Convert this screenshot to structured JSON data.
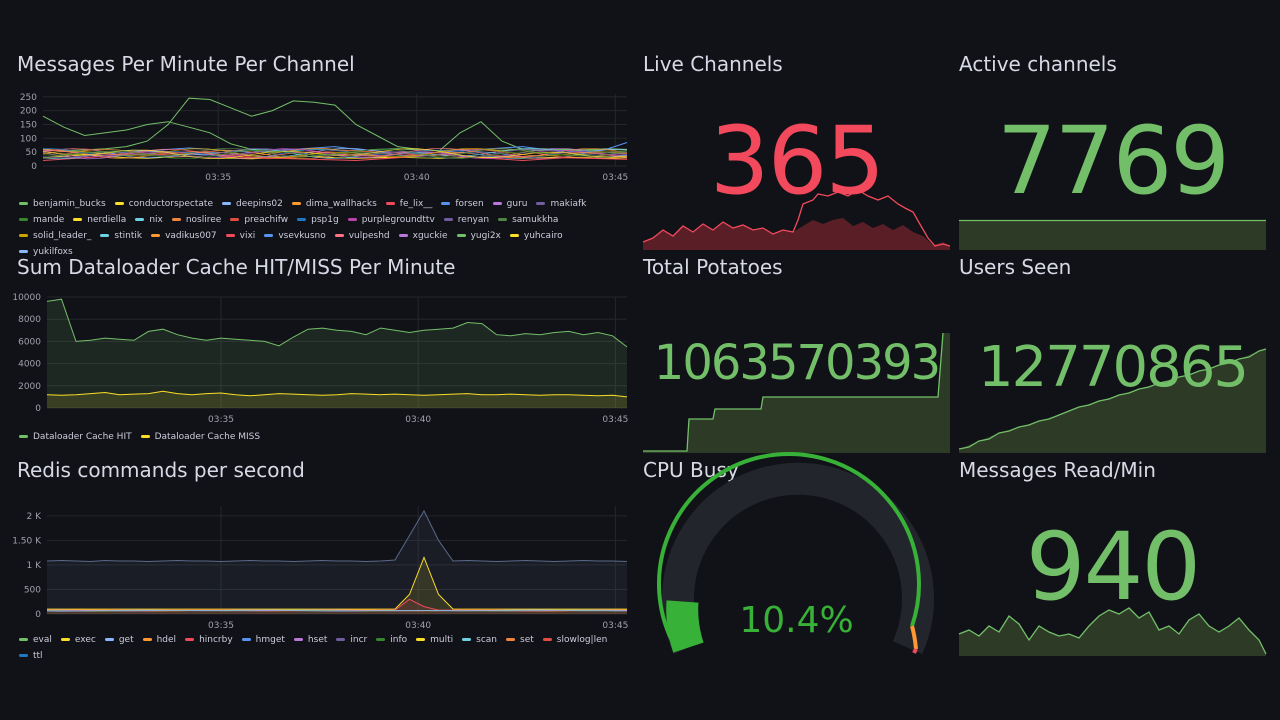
{
  "colors": {
    "background": "#111217",
    "green": "#73bf69",
    "red": "#f2495c",
    "yellow": "#fade2a",
    "grid": "#24262c"
  },
  "panels": {
    "messages": {
      "title": "Messages Per Minute Per Channel",
      "legend": [
        "benjamin_bucks",
        "conductorspectate",
        "deepins02",
        "dima_wallhacks",
        "fe_lix__",
        "forsen",
        "guru",
        "makiafk",
        "mande",
        "nerdiella",
        "nix",
        "nosliree",
        "preachifw",
        "psp1g",
        "purplegroundttv",
        "renyan",
        "samukkha",
        "solid_leader_",
        "stintik",
        "vadikus007",
        "vixi",
        "vsevkusno",
        "vulpeshd",
        "xguckie",
        "yugi2x",
        "yuhcairo",
        "yukilfoxs"
      ],
      "legend_colors": [
        "#73bf69",
        "#fade2a",
        "#8ab8ff",
        "#ff9830",
        "#f2495c",
        "#5794f2",
        "#b877d9",
        "#705da0",
        "#37872d",
        "#fade2a",
        "#6ed0e0",
        "#ef843c",
        "#e24d42",
        "#1f78c1",
        "#ba43a9",
        "#705da0",
        "#508642",
        "#cca300",
        "#6ed0e0",
        "#ff9830",
        "#f2495c",
        "#5794f2",
        "#ff7383",
        "#b877d9",
        "#73bf69",
        "#fade2a",
        "#8ab8ff"
      ]
    },
    "cache": {
      "title": "Sum Dataloader Cache HIT/MISS Per Minute",
      "legend": [
        "Dataloader Cache HIT",
        "Dataloader Cache MISS"
      ],
      "legend_colors": [
        "#73bf69",
        "#fade2a"
      ]
    },
    "redis": {
      "title": "Redis commands per second",
      "legend": [
        "eval",
        "exec",
        "get",
        "hdel",
        "hincrby",
        "hmget",
        "hset",
        "incr",
        "info",
        "multi",
        "scan",
        "set",
        "slowlog|len",
        "ttl"
      ],
      "legend_colors": [
        "#73bf69",
        "#fade2a",
        "#8ab8ff",
        "#ff9830",
        "#f2495c",
        "#5794f2",
        "#b877d9",
        "#705da0",
        "#37872d",
        "#fade2a",
        "#6ed0e0",
        "#ef843c",
        "#e24d42",
        "#1f78c1"
      ]
    },
    "live_channels": {
      "title": "Live Channels",
      "value": "365"
    },
    "active_channels": {
      "title": "Active channels",
      "value": "7769"
    },
    "total_potatoes": {
      "title": "Total Potatoes",
      "value": "1063570393"
    },
    "users_seen": {
      "title": "Users Seen",
      "value": "12770865"
    },
    "cpu_busy": {
      "title": "CPU Busy",
      "value": "10.4%",
      "percent": 10.4
    },
    "messages_read": {
      "title": "Messages Read/Min",
      "value": "940"
    }
  },
  "chart_data": [
    {
      "type": "line",
      "title": "Messages Per Minute Per Channel",
      "x_ticks": [
        "03:35",
        "03:40",
        "03:45"
      ],
      "y_ticks": [
        "0",
        "50",
        "100",
        "150",
        "200",
        "250"
      ],
      "ylim": [
        0,
        260
      ],
      "series": [
        {
          "name": "mande",
          "values": [
            60,
            55,
            58,
            62,
            70,
            90,
            150,
            245,
            240,
            210,
            180,
            200,
            235,
            230,
            220,
            150,
            110,
            70,
            60,
            55,
            120,
            160,
            90,
            60,
            55,
            60,
            58,
            62,
            60
          ]
        },
        {
          "name": "benjamin_bucks",
          "values": [
            180,
            140,
            110,
            120,
            130,
            150,
            160,
            140,
            120,
            80,
            60,
            50,
            55,
            60,
            58,
            55,
            60,
            62,
            58,
            55,
            60,
            58,
            55,
            60,
            62,
            58,
            55,
            60,
            58
          ]
        },
        {
          "name": "forsen",
          "values": [
            60,
            55,
            50,
            45,
            50,
            55,
            60,
            65,
            60,
            55,
            50,
            55,
            60,
            65,
            70,
            60,
            55,
            50,
            45,
            50,
            55,
            60,
            65,
            70,
            60,
            55,
            50,
            60,
            85
          ]
        },
        {
          "name": "conductorspectate",
          "values": [
            30,
            35,
            40,
            35,
            30,
            28,
            32,
            35,
            30,
            28,
            26,
            30,
            32,
            35,
            30,
            28,
            30,
            32,
            30,
            28,
            30,
            32,
            30,
            28,
            30,
            32,
            30,
            28,
            30
          ]
        },
        {
          "name": "fe_lix__",
          "values": [
            20,
            25,
            30,
            35,
            40,
            45,
            50,
            45,
            40,
            35,
            30,
            28,
            26,
            24,
            22,
            20,
            25,
            30,
            35,
            40,
            35,
            30,
            25,
            20,
            25,
            30,
            28,
            26,
            24
          ]
        }
      ]
    },
    {
      "type": "line",
      "title": "Sum Dataloader Cache HIT/MISS Per Minute",
      "x_ticks": [
        "03:35",
        "03:40",
        "03:45"
      ],
      "y_ticks": [
        "0",
        "2000",
        "4000",
        "6000",
        "8000",
        "10000"
      ],
      "ylim": [
        0,
        10000
      ],
      "series": [
        {
          "name": "Dataloader Cache HIT",
          "values": [
            9600,
            9800,
            6000,
            6100,
            6300,
            6200,
            6100,
            6900,
            7100,
            6600,
            6300,
            6100,
            6300,
            6200,
            6100,
            6000,
            5600,
            6400,
            7100,
            7200,
            7000,
            6900,
            6600,
            7200,
            7000,
            6800,
            7000,
            7100,
            7200,
            7700,
            7600,
            6600,
            6500,
            6700,
            6600,
            6800,
            6900,
            6600,
            6800,
            6500,
            5500
          ]
        },
        {
          "name": "Dataloader Cache MISS",
          "values": [
            1200,
            1150,
            1200,
            1300,
            1400,
            1200,
            1250,
            1300,
            1500,
            1300,
            1200,
            1300,
            1350,
            1200,
            1100,
            1200,
            1300,
            1250,
            1200,
            1150,
            1200,
            1300,
            1250,
            1200,
            1250,
            1200,
            1150,
            1200,
            1250,
            1300,
            1200,
            1200,
            1250,
            1200,
            1150,
            1200,
            1200,
            1150,
            1100,
            1150,
            1000
          ]
        }
      ]
    },
    {
      "type": "area",
      "title": "Redis commands per second",
      "x_ticks": [
        "03:35",
        "03:40",
        "03:45"
      ],
      "y_ticks": [
        "0",
        "500",
        "1 K",
        "1.50 K",
        "2 K"
      ],
      "ylim": [
        0,
        2200
      ],
      "series": [
        {
          "name": "scan",
          "values": [
            1080,
            1090,
            1080,
            1070,
            1090,
            1080,
            1080,
            1070,
            1080,
            1090,
            1080,
            1080,
            1070,
            1080,
            1090,
            1080,
            1080,
            1070,
            1080,
            1090,
            1080,
            1080,
            1070,
            1080,
            1100,
            1600,
            2100,
            1500,
            1080,
            1090,
            1080,
            1070,
            1080,
            1090,
            1080,
            1070,
            1080,
            1090,
            1080,
            1080,
            1070
          ]
        },
        {
          "name": "multi",
          "values": [
            100,
            100,
            100,
            100,
            100,
            100,
            100,
            100,
            100,
            100,
            100,
            100,
            100,
            100,
            100,
            100,
            100,
            100,
            100,
            100,
            100,
            100,
            100,
            100,
            100,
            400,
            1150,
            400,
            100,
            100,
            100,
            100,
            100,
            100,
            100,
            100,
            100,
            100,
            100,
            100,
            100
          ]
        },
        {
          "name": "hincrby",
          "values": [
            80,
            80,
            80,
            80,
            80,
            80,
            80,
            80,
            80,
            80,
            80,
            80,
            80,
            80,
            80,
            80,
            80,
            80,
            80,
            80,
            80,
            80,
            80,
            80,
            80,
            300,
            150,
            80,
            80,
            80,
            80,
            80,
            80,
            80,
            80,
            80,
            80,
            80,
            80,
            80,
            80
          ]
        }
      ]
    }
  ]
}
